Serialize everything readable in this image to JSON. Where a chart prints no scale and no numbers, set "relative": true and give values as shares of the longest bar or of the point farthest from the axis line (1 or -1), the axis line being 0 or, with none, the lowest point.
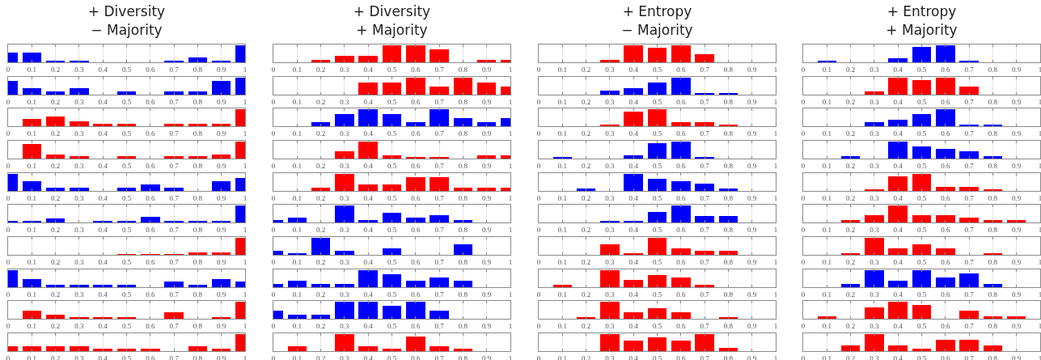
{
  "chart_data": [
    {
      "type": "bar",
      "title": "+ Diversity\n− Majority",
      "x": [
        0,
        0.1,
        0.2,
        0.3,
        0.4,
        0.5,
        0.6,
        0.7,
        0.8,
        0.9,
        1
      ],
      "values": [
        0.57,
        0.57,
        0.11,
        0.11,
        0,
        0,
        0,
        0.11,
        0.29,
        0.11,
        1
      ],
      "color": "#0000ff",
      "relative": true,
      "xlim": [
        0,
        1
      ],
      "xticks": [
        0,
        0.1,
        0.2,
        0.3,
        0.4,
        0.5,
        0.6,
        0.7,
        0.8,
        0.9,
        1
      ],
      "grid": "x"
    },
    {
      "type": "bar",
      "title": "+ Diversity\n+ Majority",
      "x": [
        0,
        0.1,
        0.2,
        0.3,
        0.4,
        0.5,
        0.6,
        0.7,
        0.8,
        0.9,
        1
      ],
      "values": [
        0,
        0,
        0.14,
        0.38,
        0.38,
        1,
        1,
        0.76,
        0,
        0.14,
        0.14
      ],
      "color": "#ff0000",
      "relative": true,
      "xlim": [
        0,
        1
      ],
      "xticks": [
        0,
        0.1,
        0.2,
        0.3,
        0.4,
        0.5,
        0.6,
        0.7,
        0.8,
        0.9,
        1
      ],
      "grid": "x"
    },
    {
      "type": "bar",
      "title": "+ Entropy\n− Majority",
      "x": [
        0,
        0.1,
        0.2,
        0.3,
        0.4,
        0.5,
        0.6,
        0.7,
        0.8,
        0.9,
        1
      ],
      "values": [
        0,
        0,
        0,
        0.13,
        1,
        0.85,
        1,
        0.5,
        0,
        0,
        0
      ],
      "color": "#ff0000",
      "relative": true,
      "xlim": [
        0,
        1
      ],
      "xticks": [
        0,
        0.1,
        0.2,
        0.3,
        0.4,
        0.5,
        0.6,
        0.7,
        0.8,
        0.9,
        1
      ],
      "grid": "x"
    },
    {
      "type": "bar",
      "title": "+ Entropy\n+ Majority",
      "x": [
        0,
        0.1,
        0.2,
        0.3,
        0.4,
        0.5,
        0.6,
        0.7,
        0.8,
        0.9,
        1
      ],
      "values": [
        0,
        0.1,
        0,
        0,
        0.22,
        0.9,
        1,
        0.1,
        0,
        0,
        0
      ],
      "color": "#0000ff",
      "relative": true,
      "xlim": [
        0,
        1
      ],
      "xticks": [
        0,
        0.1,
        0.2,
        0.3,
        0.4,
        0.5,
        0.6,
        0.7,
        0.8,
        0.9,
        1
      ],
      "grid": "x"
    },
    {
      "type": "bar",
      "x": [
        0,
        0.1,
        0.2,
        0.3,
        0.4,
        0.5,
        0.6,
        0.7,
        0.8,
        0.9,
        1
      ],
      "values": [
        0.8,
        0.38,
        0.18,
        0.38,
        0,
        0.18,
        0,
        0.18,
        0.18,
        0.8,
        1
      ],
      "color": "#0000ff",
      "relative": true,
      "xlim": [
        0,
        1
      ],
      "xticks": [
        0,
        0.1,
        0.2,
        0.3,
        0.4,
        0.5,
        0.6,
        0.7,
        0.8,
        0.9,
        1
      ],
      "grid": "x"
    },
    {
      "type": "bar",
      "x": [
        0,
        0.1,
        0.2,
        0.3,
        0.4,
        0.5,
        0.6,
        0.7,
        0.8,
        0.9,
        1
      ],
      "values": [
        0,
        0,
        0,
        0,
        0.74,
        0.74,
        1,
        0.49,
        1,
        0.74,
        0.49
      ],
      "color": "#ff0000",
      "relative": true,
      "xlim": [
        0,
        1
      ],
      "xticks": [
        0,
        0.1,
        0.2,
        0.3,
        0.4,
        0.5,
        0.6,
        0.7,
        0.8,
        0.9,
        1
      ],
      "grid": "x"
    },
    {
      "type": "bar",
      "x": [
        0,
        0.1,
        0.2,
        0.3,
        0.4,
        0.5,
        0.6,
        0.7,
        0.8,
        0.9,
        1
      ],
      "values": [
        0,
        0,
        0,
        0.25,
        0.37,
        0.74,
        1,
        0.11,
        0.11,
        0,
        0
      ],
      "color": "#0000ff",
      "relative": true,
      "xlim": [
        0,
        1
      ],
      "xticks": [
        0,
        0.1,
        0.2,
        0.3,
        0.4,
        0.5,
        0.6,
        0.7,
        0.8,
        0.9,
        1
      ],
      "grid": "x"
    },
    {
      "type": "bar",
      "x": [
        0,
        0.1,
        0.2,
        0.3,
        0.4,
        0.5,
        0.6,
        0.7,
        0.8,
        0.9,
        1
      ],
      "values": [
        0,
        0,
        0,
        0.17,
        1,
        0.85,
        1,
        0.5,
        0,
        0,
        0
      ],
      "color": "#ff0000",
      "relative": true,
      "xlim": [
        0,
        1
      ],
      "xticks": [
        0,
        0.1,
        0.2,
        0.3,
        0.4,
        0.5,
        0.6,
        0.7,
        0.8,
        0.9,
        1
      ],
      "grid": "x"
    },
    {
      "type": "bar",
      "x": [
        0,
        0.1,
        0.2,
        0.3,
        0.4,
        0.5,
        0.6,
        0.7,
        0.8,
        0.9,
        1
      ],
      "values": [
        0,
        0.42,
        0.58,
        0.28,
        0.12,
        0.12,
        0,
        0.12,
        0.12,
        0.12,
        1
      ],
      "color": "#ff0000",
      "relative": true,
      "xlim": [
        0,
        1
      ],
      "xticks": [
        0,
        0.1,
        0.2,
        0.3,
        0.4,
        0.5,
        0.6,
        0.7,
        0.8,
        0.9,
        1
      ],
      "grid": "x"
    },
    {
      "type": "bar",
      "x": [
        0,
        0.1,
        0.2,
        0.3,
        0.4,
        0.5,
        0.6,
        0.7,
        0.8,
        0.9,
        1
      ],
      "values": [
        0,
        0,
        0.24,
        0.73,
        1,
        0.73,
        0.24,
        1,
        0.5,
        0.24,
        0.5
      ],
      "color": "#0000ff",
      "relative": true,
      "xlim": [
        0,
        1
      ],
      "xticks": [
        0,
        0.1,
        0.2,
        0.3,
        0.4,
        0.5,
        0.6,
        0.7,
        0.8,
        0.9,
        1
      ],
      "grid": "x"
    },
    {
      "type": "bar",
      "x": [
        0,
        0.1,
        0.2,
        0.3,
        0.4,
        0.5,
        0.6,
        0.7,
        0.8,
        0.9,
        1
      ],
      "values": [
        0,
        0,
        0,
        0.11,
        0.88,
        1,
        0.23,
        0.23,
        0.11,
        0,
        0
      ],
      "color": "#ff0000",
      "relative": true,
      "xlim": [
        0,
        1
      ],
      "xticks": [
        0,
        0.1,
        0.2,
        0.3,
        0.4,
        0.5,
        0.6,
        0.7,
        0.8,
        0.9,
        1
      ],
      "grid": "x"
    },
    {
      "type": "bar",
      "x": [
        0,
        0.1,
        0.2,
        0.3,
        0.4,
        0.5,
        0.6,
        0.7,
        0.8,
        0.9,
        1
      ],
      "values": [
        0,
        0,
        0,
        0.25,
        0.37,
        0.74,
        1,
        0.11,
        0.11,
        0,
        0
      ],
      "color": "#0000ff",
      "relative": true,
      "xlim": [
        0,
        1
      ],
      "xticks": [
        0,
        0.1,
        0.2,
        0.3,
        0.4,
        0.5,
        0.6,
        0.7,
        0.8,
        0.9,
        1
      ],
      "grid": "x"
    },
    {
      "type": "bar",
      "x": [
        0,
        0.1,
        0.2,
        0.3,
        0.4,
        0.5,
        0.6,
        0.7,
        0.8,
        0.9,
        1
      ],
      "values": [
        0,
        0.84,
        0.26,
        0.12,
        0,
        0.12,
        0,
        0.12,
        0.12,
        0.26,
        1
      ],
      "color": "#ff0000",
      "relative": true,
      "xlim": [
        0,
        1
      ],
      "xticks": [
        0,
        0.1,
        0.2,
        0.3,
        0.4,
        0.5,
        0.6,
        0.7,
        0.8,
        0.9,
        1
      ],
      "grid": "x"
    },
    {
      "type": "bar",
      "x": [
        0,
        0.1,
        0.2,
        0.3,
        0.4,
        0.5,
        0.6,
        0.7,
        0.8,
        0.9,
        1
      ],
      "values": [
        0,
        0,
        0,
        0.45,
        1,
        0.21,
        0.1,
        0.1,
        0,
        0.21,
        0.21
      ],
      "color": "#ff0000",
      "relative": true,
      "xlim": [
        0,
        1
      ],
      "xticks": [
        0,
        0.1,
        0.2,
        0.3,
        0.4,
        0.5,
        0.6,
        0.7,
        0.8,
        0.9,
        1
      ],
      "grid": "x"
    },
    {
      "type": "bar",
      "x": [
        0,
        0.1,
        0.2,
        0.3,
        0.4,
        0.5,
        0.6,
        0.7,
        0.8,
        0.9,
        1
      ],
      "values": [
        0,
        0.1,
        0,
        0,
        0.21,
        0.9,
        1,
        0.1,
        0,
        0,
        0
      ],
      "color": "#0000ff",
      "relative": true,
      "xlim": [
        0,
        1
      ],
      "xticks": [
        0,
        0.1,
        0.2,
        0.3,
        0.4,
        0.5,
        0.6,
        0.7,
        0.8,
        0.9,
        1
      ],
      "grid": "x"
    },
    {
      "type": "bar",
      "x": [
        0,
        0.1,
        0.2,
        0.3,
        0.4,
        0.5,
        0.6,
        0.7,
        0.8,
        0.9,
        1
      ],
      "values": [
        0,
        0,
        0.12,
        0,
        1,
        0.72,
        0.56,
        0.42,
        0.12,
        0,
        0
      ],
      "color": "#0000ff",
      "relative": true,
      "xlim": [
        0,
        1
      ],
      "xticks": [
        0,
        0.1,
        0.2,
        0.3,
        0.4,
        0.5,
        0.6,
        0.7,
        0.8,
        0.9,
        1
      ],
      "grid": "x"
    },
    {
      "type": "bar",
      "x": [
        0,
        0.1,
        0.2,
        0.3,
        0.4,
        0.5,
        0.6,
        0.7,
        0.8,
        0.9,
        1
      ],
      "values": [
        1,
        0.59,
        0.17,
        0.17,
        0,
        0.17,
        0.39,
        0.17,
        0,
        0.59,
        0.78
      ],
      "color": "#0000ff",
      "relative": true,
      "xlim": [
        0,
        1
      ],
      "xticks": [
        0,
        0.1,
        0.2,
        0.3,
        0.4,
        0.5,
        0.6,
        0.7,
        0.8,
        0.9,
        1
      ],
      "grid": "x"
    },
    {
      "type": "bar",
      "x": [
        0,
        0.1,
        0.2,
        0.3,
        0.4,
        0.5,
        0.6,
        0.7,
        0.8,
        0.9,
        1
      ],
      "values": [
        0,
        0,
        0.2,
        1,
        0.39,
        0.39,
        0.8,
        0.8,
        0.2,
        0.2,
        0.2
      ],
      "color": "#ff0000",
      "relative": true,
      "xlim": [
        0,
        1
      ],
      "xticks": [
        0,
        0.1,
        0.2,
        0.3,
        0.4,
        0.5,
        0.6,
        0.7,
        0.8,
        0.9,
        1
      ],
      "grid": "x"
    },
    {
      "type": "bar",
      "x": [
        0,
        0.1,
        0.2,
        0.3,
        0.4,
        0.5,
        0.6,
        0.7,
        0.8,
        0.9,
        1
      ],
      "values": [
        0,
        0,
        0.12,
        0,
        1,
        0.72,
        0.56,
        0.42,
        0.12,
        0,
        0
      ],
      "color": "#0000ff",
      "relative": true,
      "xlim": [
        0,
        1
      ],
      "xticks": [
        0,
        0.1,
        0.2,
        0.3,
        0.4,
        0.5,
        0.6,
        0.7,
        0.8,
        0.9,
        1
      ],
      "grid": "x"
    },
    {
      "type": "bar",
      "x": [
        0,
        0.1,
        0.2,
        0.3,
        0.4,
        0.5,
        0.6,
        0.7,
        0.8,
        0.9,
        1
      ],
      "values": [
        0,
        0,
        0,
        0.11,
        0.88,
        1,
        0.25,
        0.25,
        0.11,
        0,
        0
      ],
      "color": "#ff0000",
      "relative": true,
      "xlim": [
        0,
        1
      ],
      "xticks": [
        0,
        0.1,
        0.2,
        0.3,
        0.4,
        0.5,
        0.6,
        0.7,
        0.8,
        0.9,
        1
      ],
      "grid": "x"
    },
    {
      "type": "bar",
      "x": [
        0,
        0.1,
        0.2,
        0.3,
        0.4,
        0.5,
        0.6,
        0.7,
        0.8,
        0.9,
        1
      ],
      "values": [
        0.1,
        0.1,
        0.22,
        0,
        0.1,
        0.1,
        0.33,
        0.1,
        0.1,
        0.1,
        1
      ],
      "color": "#0000ff",
      "relative": true,
      "xlim": [
        0,
        1
      ],
      "xticks": [
        0,
        0.1,
        0.2,
        0.3,
        0.4,
        0.5,
        0.6,
        0.7,
        0.8,
        0.9,
        1
      ],
      "grid": "x"
    },
    {
      "type": "bar",
      "x": [
        0,
        0.1,
        0.2,
        0.3,
        0.4,
        0.5,
        0.6,
        0.7,
        0.8,
        0.9,
        1
      ],
      "values": [
        0.12,
        0.28,
        0,
        1,
        0.12,
        0.56,
        0.28,
        0.42,
        0.12,
        0,
        0
      ],
      "color": "#0000ff",
      "relative": true,
      "xlim": [
        0,
        1
      ],
      "xticks": [
        0,
        0.1,
        0.2,
        0.3,
        0.4,
        0.5,
        0.6,
        0.7,
        0.8,
        0.9,
        1
      ],
      "grid": "x"
    },
    {
      "type": "bar",
      "x": [
        0,
        0.1,
        0.2,
        0.3,
        0.4,
        0.5,
        0.6,
        0.7,
        0.8,
        0.9,
        1
      ],
      "values": [
        0,
        0,
        0,
        0.11,
        0.11,
        0.63,
        1,
        0.37,
        0.37,
        0,
        0
      ],
      "color": "#0000ff",
      "relative": true,
      "xlim": [
        0,
        1
      ],
      "xticks": [
        0,
        0.1,
        0.2,
        0.3,
        0.4,
        0.5,
        0.6,
        0.7,
        0.8,
        0.9,
        1
      ],
      "grid": "x"
    },
    {
      "type": "bar",
      "x": [
        0,
        0.1,
        0.2,
        0.3,
        0.4,
        0.5,
        0.6,
        0.7,
        0.8,
        0.9,
        1
      ],
      "values": [
        0,
        0,
        0.14,
        0.44,
        1,
        0.44,
        0.44,
        0.28,
        0.14,
        0.14,
        0
      ],
      "color": "#ff0000",
      "relative": true,
      "xlim": [
        0,
        1
      ],
      "xticks": [
        0,
        0.1,
        0.2,
        0.3,
        0.4,
        0.5,
        0.6,
        0.7,
        0.8,
        0.9,
        1
      ],
      "grid": "x"
    },
    {
      "type": "bar",
      "x": [
        0,
        0.1,
        0.2,
        0.3,
        0.4,
        0.5,
        0.6,
        0.7,
        0.8,
        0.9,
        1
      ],
      "values": [
        0,
        0,
        0,
        0,
        0,
        0.07,
        0.07,
        0.07,
        0.13,
        0.13,
        1
      ],
      "color": "#ff0000",
      "relative": true,
      "xlim": [
        0,
        1
      ],
      "xticks": [
        0,
        0.1,
        0.2,
        0.3,
        0.4,
        0.5,
        0.6,
        0.7,
        0.8,
        0.9,
        1
      ],
      "grid": "x"
    },
    {
      "type": "bar",
      "x": [
        0,
        0.1,
        0.2,
        0.3,
        0.4,
        0.5,
        0.6,
        0.7,
        0.8,
        0.9,
        1
      ],
      "values": [
        0.23,
        0.11,
        1,
        0.23,
        0,
        0.38,
        0,
        0,
        0.62,
        0,
        0
      ],
      "color": "#0000ff",
      "relative": true,
      "xlim": [
        0,
        1
      ],
      "xticks": [
        0,
        0.1,
        0.2,
        0.3,
        0.4,
        0.5,
        0.6,
        0.7,
        0.8,
        0.9,
        1
      ],
      "grid": "x"
    },
    {
      "type": "bar",
      "x": [
        0,
        0.1,
        0.2,
        0.3,
        0.4,
        0.5,
        0.6,
        0.7,
        0.8,
        0.9,
        1
      ],
      "values": [
        0,
        0,
        0,
        0.62,
        0.11,
        1,
        0.38,
        0.23,
        0.23,
        0,
        0
      ],
      "color": "#ff0000",
      "relative": true,
      "xlim": [
        0,
        1
      ],
      "xticks": [
        0,
        0.1,
        0.2,
        0.3,
        0.4,
        0.5,
        0.6,
        0.7,
        0.8,
        0.9,
        1
      ],
      "grid": "x"
    },
    {
      "type": "bar",
      "x": [
        0,
        0.1,
        0.2,
        0.3,
        0.4,
        0.5,
        0.6,
        0.7,
        0.8,
        0.9,
        1
      ],
      "values": [
        0,
        0,
        0.11,
        1,
        0.38,
        0.62,
        0.38,
        0,
        0.11,
        0,
        0
      ],
      "color": "#ff0000",
      "relative": true,
      "xlim": [
        0,
        1
      ],
      "xticks": [
        0,
        0.1,
        0.2,
        0.3,
        0.4,
        0.5,
        0.6,
        0.7,
        0.8,
        0.9,
        1
      ],
      "grid": "x"
    },
    {
      "type": "bar",
      "x": [
        0,
        0.1,
        0.2,
        0.3,
        0.4,
        0.5,
        0.6,
        0.7,
        0.8,
        0.9,
        1
      ],
      "values": [
        1,
        0.49,
        0.15,
        0.15,
        0.15,
        0.15,
        0,
        0.32,
        0.15,
        0.49,
        0.32
      ],
      "color": "#0000ff",
      "relative": true,
      "xlim": [
        0,
        1
      ],
      "xticks": [
        0,
        0.1,
        0.2,
        0.3,
        0.4,
        0.5,
        0.6,
        0.7,
        0.8,
        0.9,
        1
      ],
      "grid": "x"
    },
    {
      "type": "bar",
      "x": [
        0,
        0.1,
        0.2,
        0.3,
        0.4,
        0.5,
        0.6,
        0.7,
        0.8,
        0.9,
        1
      ],
      "values": [
        0.18,
        0.38,
        0.18,
        0.18,
        1,
        0.78,
        0.38,
        0.58,
        0.38,
        0,
        0
      ],
      "color": "#0000ff",
      "relative": true,
      "xlim": [
        0,
        1
      ],
      "xticks": [
        0,
        0.1,
        0.2,
        0.3,
        0.4,
        0.5,
        0.6,
        0.7,
        0.8,
        0.9,
        1
      ],
      "grid": "x"
    },
    {
      "type": "bar",
      "x": [
        0,
        0.1,
        0.2,
        0.3,
        0.4,
        0.5,
        0.6,
        0.7,
        0.8,
        0.9,
        1
      ],
      "values": [
        0,
        0.13,
        0,
        1,
        0.43,
        0.72,
        0.57,
        0.13,
        0,
        0,
        0
      ],
      "color": "#ff0000",
      "relative": true,
      "xlim": [
        0,
        1
      ],
      "xticks": [
        0,
        0.1,
        0.2,
        0.3,
        0.4,
        0.5,
        0.6,
        0.7,
        0.8,
        0.9,
        1
      ],
      "grid": "x"
    },
    {
      "type": "bar",
      "x": [
        0,
        0.1,
        0.2,
        0.3,
        0.4,
        0.5,
        0.6,
        0.7,
        0.8,
        0.9,
        1
      ],
      "values": [
        0,
        0,
        0.18,
        1,
        0.38,
        1,
        0.59,
        0.79,
        0.18,
        0,
        0
      ],
      "color": "#0000ff",
      "relative": true,
      "xlim": [
        0,
        1
      ],
      "xticks": [
        0,
        0.1,
        0.2,
        0.3,
        0.4,
        0.5,
        0.6,
        0.7,
        0.8,
        0.9,
        1
      ],
      "grid": "x"
    },
    {
      "type": "bar",
      "x": [
        0,
        0.1,
        0.2,
        0.3,
        0.4,
        0.5,
        0.6,
        0.7,
        0.8,
        0.9,
        1
      ],
      "values": [
        0,
        0.49,
        0.24,
        0.11,
        0.11,
        0.11,
        0,
        0.37,
        0,
        0.11,
        1
      ],
      "color": "#ff0000",
      "relative": true,
      "xlim": [
        0,
        1
      ],
      "xticks": [
        0,
        0.1,
        0.2,
        0.3,
        0.4,
        0.5,
        0.6,
        0.7,
        0.8,
        0.9,
        1
      ],
      "grid": "x"
    },
    {
      "type": "bar",
      "x": [
        0,
        0.1,
        0.2,
        0.3,
        0.4,
        0.5,
        0.6,
        0.7,
        0.8,
        0.9,
        1
      ],
      "values": [
        0.48,
        0.23,
        0.23,
        1,
        1,
        0.75,
        1,
        0.48,
        0,
        0,
        0
      ],
      "color": "#0000ff",
      "relative": true,
      "xlim": [
        0,
        1
      ],
      "xticks": [
        0,
        0.1,
        0.2,
        0.3,
        0.4,
        0.5,
        0.6,
        0.7,
        0.8,
        0.9,
        1
      ],
      "grid": "x"
    },
    {
      "type": "bar",
      "x": [
        0,
        0.1,
        0.2,
        0.3,
        0.4,
        0.5,
        0.6,
        0.7,
        0.8,
        0.9,
        1
      ],
      "values": [
        0,
        0,
        0.11,
        1,
        0.38,
        0.62,
        0.38,
        0,
        0.11,
        0,
        0
      ],
      "color": "#ff0000",
      "relative": true,
      "xlim": [
        0,
        1
      ],
      "xticks": [
        0,
        0.1,
        0.2,
        0.3,
        0.4,
        0.5,
        0.6,
        0.7,
        0.8,
        0.9,
        1
      ],
      "grid": "x"
    },
    {
      "type": "bar",
      "x": [
        0,
        0.1,
        0.2,
        0.3,
        0.4,
        0.5,
        0.6,
        0.7,
        0.8,
        0.9,
        1
      ],
      "values": [
        0,
        0.15,
        0,
        0.66,
        1,
        0.83,
        0,
        0.49,
        0.15,
        0.15,
        0
      ],
      "color": "#ff0000",
      "relative": true,
      "xlim": [
        0,
        1
      ],
      "xticks": [
        0,
        0.1,
        0.2,
        0.3,
        0.4,
        0.5,
        0.6,
        0.7,
        0.8,
        0.9,
        1
      ],
      "grid": "x"
    },
    {
      "type": "bar",
      "x": [
        0,
        0.1,
        0.2,
        0.3,
        0.4,
        0.5,
        0.6,
        0.7,
        0.8,
        0.9,
        1
      ],
      "values": [
        0.27,
        0.27,
        0.27,
        0.27,
        0.13,
        0.13,
        0.13,
        0,
        0.27,
        0.13,
        1
      ],
      "color": "#ff0000",
      "relative": true,
      "xlim": [
        0,
        1
      ],
      "xticks": [
        0,
        0.1,
        0.2,
        0.3,
        0.4,
        0.5,
        0.6,
        0.7,
        0.8,
        0.9,
        1
      ],
      "grid": "x"
    },
    {
      "type": "bar",
      "x": [
        0,
        0.1,
        0.2,
        0.3,
        0.4,
        0.5,
        0.6,
        0.7,
        0.8,
        0.9,
        1
      ],
      "values": [
        0,
        0.27,
        0,
        1,
        0.27,
        0.13,
        0.86,
        0.27,
        0.13,
        0,
        0
      ],
      "color": "#ff0000",
      "relative": true,
      "xlim": [
        0,
        1
      ],
      "xticks": [
        0,
        0.1,
        0.2,
        0.3,
        0.4,
        0.5,
        0.6,
        0.7,
        0.8,
        0.9,
        1
      ],
      "grid": "x"
    },
    {
      "type": "bar",
      "x": [
        0,
        0.1,
        0.2,
        0.3,
        0.4,
        0.5,
        0.6,
        0.7,
        0.8,
        0.9,
        1
      ],
      "values": [
        0,
        0,
        0,
        1,
        0.6,
        0.8,
        0.6,
        1,
        0.18,
        0,
        0
      ],
      "color": "#ff0000",
      "relative": true,
      "xlim": [
        0,
        1
      ],
      "xticks": [
        0,
        0.1,
        0.2,
        0.3,
        0.4,
        0.5,
        0.6,
        0.7,
        0.8,
        0.9,
        1
      ],
      "grid": "x"
    },
    {
      "type": "bar",
      "x": [
        0,
        0.1,
        0.2,
        0.3,
        0.4,
        0.5,
        0.6,
        0.7,
        0.8,
        0.9,
        1
      ],
      "values": [
        0,
        0,
        0.33,
        1,
        0.33,
        0.15,
        0.67,
        0.67,
        0.33,
        0,
        0
      ],
      "color": "#ff0000",
      "relative": true,
      "xlim": [
        0,
        1
      ],
      "xticks": [
        0,
        0.1,
        0.2,
        0.3,
        0.4,
        0.5,
        0.6,
        0.7,
        0.8,
        0.9,
        1
      ],
      "grid": "x"
    }
  ]
}
